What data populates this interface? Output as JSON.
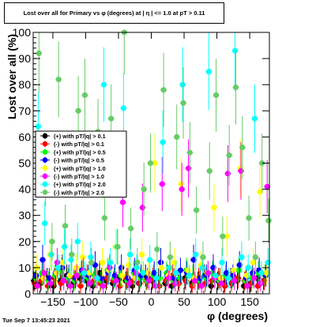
{
  "chart_data": {
    "type": "scatter",
    "title": "Lost over all for Primary vs φ (degrees) at | η | <= 1.0 at pT > 0.11",
    "xlabel": "φ (degrees)",
    "ylabel": "Lost over all (%)",
    "xlim": [
      -180,
      180
    ],
    "ylim": [
      0,
      100
    ],
    "x_ticks": [
      -150,
      -100,
      -50,
      0,
      50,
      100,
      150
    ],
    "x_tick_labels": [
      "−150",
      "−100",
      "−50",
      "0",
      "50",
      "100",
      "150"
    ],
    "y_ticks": [
      0,
      10,
      20,
      30,
      40,
      50,
      60,
      70,
      80,
      90,
      100
    ],
    "y_tick_labels": [
      "0",
      "10",
      "20",
      "30",
      "40",
      "50",
      "60",
      "70",
      "80",
      "90",
      "100"
    ],
    "grid": false,
    "legend_position": "left",
    "series": [
      {
        "name": "(+) with pT/|q| > 0.1",
        "color": "#000000",
        "marker": "circle",
        "x": [
          -175,
          -165,
          -155,
          -145,
          -135,
          -125,
          -115,
          -105,
          -95,
          -85,
          -75,
          -65,
          -55,
          -45,
          -35,
          -25,
          -15,
          -5,
          5,
          15,
          25,
          35,
          45,
          55,
          65,
          75,
          85,
          95,
          105,
          115,
          125,
          135,
          145,
          155,
          165,
          175
        ],
        "y": [
          5,
          4,
          6,
          3,
          5,
          7,
          4,
          6,
          5,
          3,
          8,
          5,
          4,
          6,
          5,
          3,
          4,
          7,
          5,
          6,
          4,
          3,
          5,
          6,
          4,
          5,
          7,
          3,
          5,
          4,
          6,
          5,
          3,
          4,
          6,
          5
        ]
      },
      {
        "name": "(-) with pT/|q| > 0.1",
        "color": "#ff0000",
        "marker": "circle",
        "x": [
          -175,
          -165,
          -155,
          -145,
          -135,
          -125,
          -115,
          -105,
          -95,
          -85,
          -75,
          -65,
          -55,
          -45,
          -35,
          -25,
          -15,
          -5,
          5,
          15,
          25,
          35,
          45,
          55,
          65,
          75,
          85,
          95,
          105,
          115,
          125,
          135,
          145,
          155,
          165,
          175
        ],
        "y": [
          4,
          5,
          3,
          6,
          4,
          5,
          6,
          3,
          7,
          5,
          4,
          6,
          5,
          3,
          6,
          5,
          4,
          5,
          6,
          3,
          5,
          7,
          4,
          5,
          3,
          6,
          4,
          5,
          6,
          3,
          4,
          6,
          5,
          4,
          3,
          5
        ]
      },
      {
        "name": "(+) with pT/|q| > 0.5",
        "color": "#00ff00",
        "marker": "circle",
        "x": [
          -175,
          -165,
          -155,
          -145,
          -135,
          -125,
          -115,
          -105,
          -95,
          -85,
          -75,
          -65,
          -55,
          -45,
          -35,
          -25,
          -15,
          -5,
          5,
          15,
          25,
          35,
          45,
          55,
          65,
          75,
          85,
          95,
          105,
          115,
          125,
          135,
          145,
          155,
          165,
          175
        ],
        "y": [
          6,
          8,
          5,
          7,
          9,
          6,
          5,
          8,
          6,
          7,
          5,
          9,
          6,
          7,
          5,
          8,
          6,
          5,
          7,
          6,
          8,
          5,
          6,
          9,
          7,
          5,
          6,
          8,
          5,
          7,
          6,
          9,
          5,
          6,
          8,
          7
        ]
      },
      {
        "name": "(-) with pT/|q| > 0.5",
        "color": "#0000ff",
        "marker": "circle",
        "x": [
          -175,
          -165,
          -155,
          -145,
          -135,
          -125,
          -115,
          -105,
          -95,
          -85,
          -75,
          -65,
          -55,
          -45,
          -35,
          -25,
          -15,
          -5,
          5,
          15,
          25,
          35,
          45,
          55,
          65,
          75,
          85,
          95,
          105,
          115,
          125,
          135,
          145,
          155,
          165,
          175
        ],
        "y": [
          7,
          13,
          6,
          8,
          10,
          7,
          6,
          9,
          7,
          11,
          6,
          8,
          7,
          10,
          6,
          9,
          7,
          6,
          8,
          12,
          7,
          6,
          9,
          8,
          13,
          6,
          7,
          10,
          6,
          8,
          7,
          11,
          6,
          8,
          9,
          7
        ]
      },
      {
        "name": "(+) with pT/|q| > 1.0",
        "color": "#ffff00",
        "marker": "circle",
        "x": [
          -175,
          -165,
          -155,
          -145,
          -135,
          -125,
          -115,
          -105,
          -95,
          -85,
          -75,
          -65,
          -55,
          -45,
          -35,
          -25,
          -15,
          -5,
          5,
          15,
          25,
          35,
          45,
          55,
          65,
          75,
          85,
          95,
          105,
          115,
          125,
          135,
          145,
          155,
          165,
          175
        ],
        "y": [
          10,
          6,
          15,
          8,
          12,
          7,
          10,
          14,
          8,
          6,
          12,
          9,
          18,
          7,
          11,
          6,
          15,
          8,
          50,
          10,
          7,
          12,
          42,
          9,
          6,
          11,
          8,
          33,
          6,
          22,
          9,
          48,
          7,
          12,
          39,
          8
        ]
      },
      {
        "name": "(-) with pT/|q| > 1.0",
        "color": "#ff00ff",
        "marker": "circle",
        "x": [
          -175,
          -165,
          -155,
          -145,
          -135,
          -125,
          -115,
          -105,
          -95,
          -85,
          -75,
          -65,
          -55,
          -45,
          -35,
          -25,
          -15,
          -5,
          5,
          15,
          25,
          35,
          45,
          55,
          65,
          75,
          85,
          95,
          105,
          115,
          125,
          135,
          145,
          155,
          165,
          175
        ],
        "y": [
          3,
          8,
          4,
          12,
          5,
          3,
          7,
          9,
          4,
          6,
          3,
          10,
          5,
          35,
          4,
          8,
          33,
          5,
          3,
          42,
          6,
          4,
          40,
          48,
          5,
          3,
          8,
          6,
          4,
          46,
          5,
          47,
          3,
          6,
          4,
          41
        ]
      },
      {
        "name": "(+) with pT/|q| > 2.0",
        "color": "#00ffff",
        "marker": "circle",
        "x": [
          -175,
          -165,
          -155,
          -145,
          -135,
          -125,
          -115,
          -105,
          -95,
          -85,
          -75,
          -65,
          -55,
          -45,
          -35,
          -25,
          -15,
          -5,
          5,
          15,
          25,
          35,
          45,
          55,
          65,
          75,
          85,
          95,
          105,
          115,
          125,
          135,
          145,
          155,
          165,
          175
        ],
        "y": [
          64,
          27,
          15,
          10,
          18,
          13,
          20,
          8,
          14,
          6,
          80,
          12,
          18,
          71,
          15,
          10,
          8,
          13,
          6,
          58,
          10,
          8,
          80,
          7,
          15,
          10,
          85,
          7,
          12,
          6,
          93,
          14,
          10,
          67,
          8,
          12
        ]
      },
      {
        "name": "(-) with pT/|q| > 2.0",
        "color": "#66cc66",
        "marker": "circle",
        "x": [
          -175,
          -165,
          -155,
          -145,
          -135,
          -125,
          -115,
          -105,
          -95,
          -85,
          -75,
          -65,
          -55,
          -45,
          -35,
          -25,
          -15,
          -5,
          5,
          15,
          25,
          35,
          45,
          55,
          65,
          75,
          85,
          95,
          105,
          115,
          125,
          135,
          145,
          155,
          165,
          175
        ],
        "y": [
          92,
          44,
          20,
          82,
          26,
          15,
          70,
          76,
          12,
          62,
          29,
          67,
          18,
          100,
          25,
          12,
          40,
          50,
          17,
          78,
          14,
          60,
          73,
          54,
          32,
          14,
          47,
          76,
          22,
          53,
          79,
          56,
          29,
          14,
          50,
          28
        ]
      }
    ]
  },
  "footer": {
    "timestamp": "Tue Sep  7 13:45:23 2021"
  }
}
